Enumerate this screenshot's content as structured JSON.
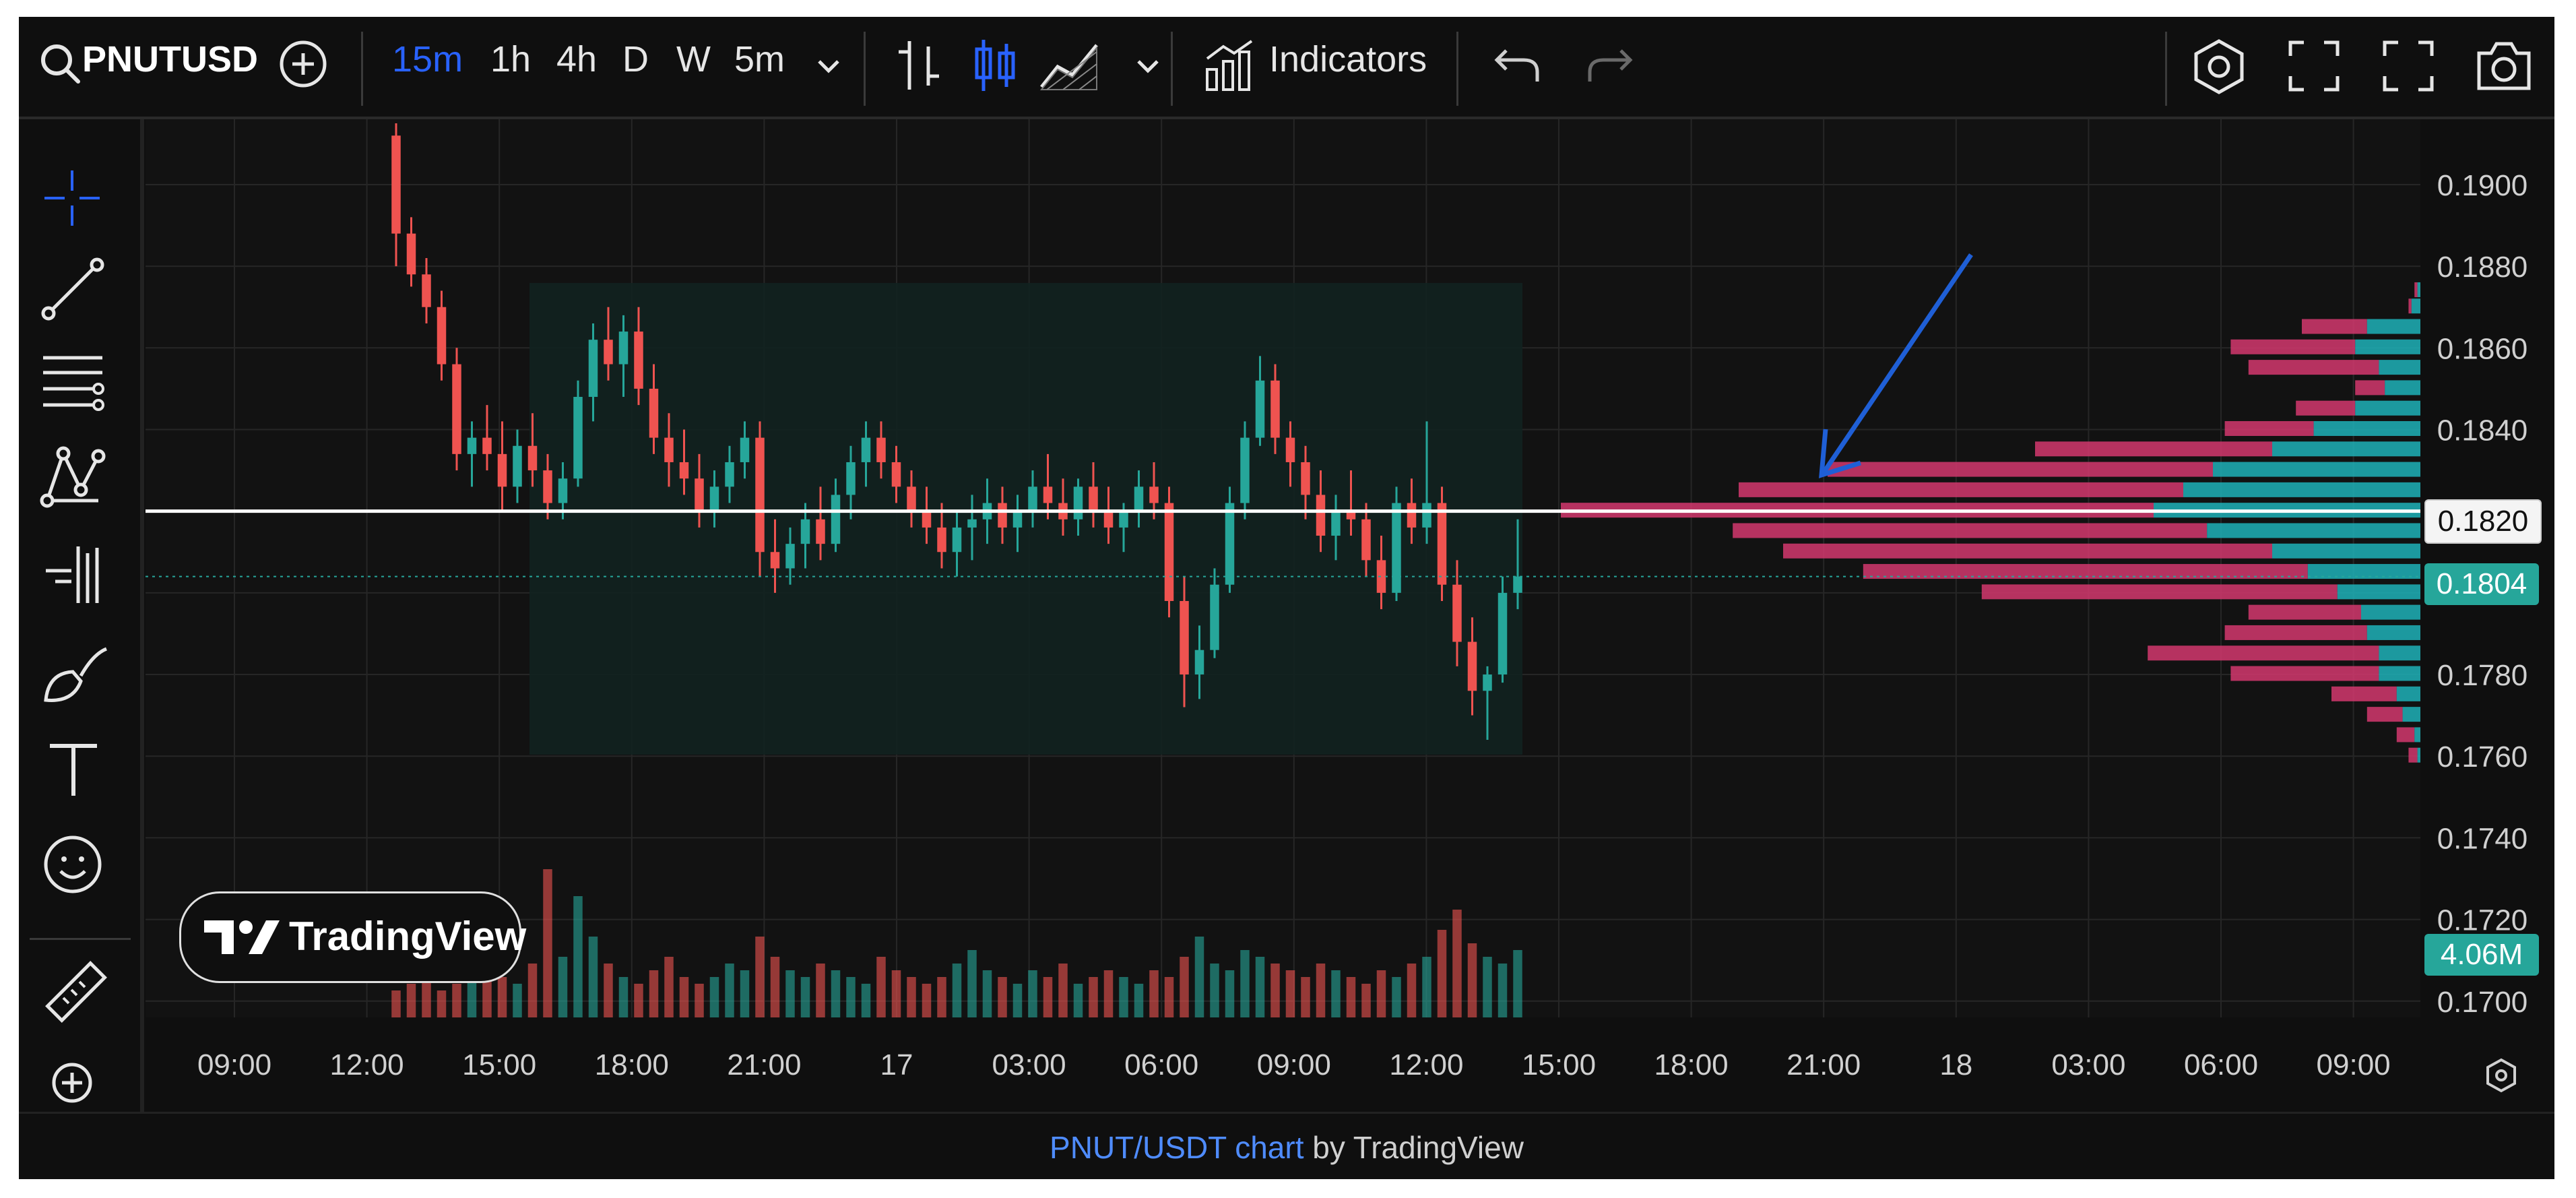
{
  "toolbar": {
    "symbol": "PNUTUSD",
    "intervals": [
      "15m",
      "1h",
      "4h",
      "D",
      "W",
      "5m"
    ],
    "active_interval": "15m",
    "indicators_label": "Indicators",
    "icons": [
      "search-icon",
      "add-symbol-icon",
      "chevron-down-icon",
      "bar-chart-icon",
      "candlestick-icon",
      "area-chart-icon",
      "chevron-down-icon",
      "indicators-icon",
      "undo-icon",
      "redo-icon",
      "settings-icon",
      "fullscreen-icon",
      "fullscreen-icon",
      "camera-icon"
    ]
  },
  "sidebar": {
    "tools": [
      "crosshair-icon",
      "trendline-icon",
      "fib-retracement-icon",
      "pattern-icon",
      "prediction-icon",
      "brush-icon",
      "text-icon",
      "emoji-icon",
      "ruler-icon",
      "zoom-in-icon"
    ]
  },
  "watermark": {
    "label": "TradingView"
  },
  "footer": {
    "link_text": "PNUT/USDT chart",
    "suffix": " by TradingView"
  },
  "chart_data": {
    "type": "candlestick",
    "symbol": "PNUT/USDT",
    "x_ticks": [
      "09:00",
      "12:00",
      "15:00",
      "18:00",
      "21:00",
      "17",
      "03:00",
      "06:00",
      "09:00",
      "12:00",
      "15:00",
      "18:00",
      "21:00",
      "18",
      "03:00",
      "06:00",
      "09:00"
    ],
    "y_ticks": [
      "0.1900",
      "0.1880",
      "0.1860",
      "0.1840",
      "0.1820",
      "0.1800",
      "0.1780",
      "0.1760",
      "0.1740",
      "0.1720",
      "0.1700"
    ],
    "ylim": [
      0.1696,
      0.1916
    ],
    "current_price": "0.1804",
    "horizontal_line_price": "0.1820",
    "volume_label": "4.06M",
    "colors": {
      "up": "#26a69a",
      "down": "#ef5350",
      "line": "#ffffff",
      "arrow": "#1f5fd6",
      "range_box": "#122220",
      "vp_up": "#1fb1b9",
      "vp_down": "#d4386e"
    },
    "ohlc": [
      [
        0.1912,
        0.1915,
        0.188,
        0.1888
      ],
      [
        0.1888,
        0.1892,
        0.1875,
        0.1878
      ],
      [
        0.1878,
        0.1882,
        0.1866,
        0.187
      ],
      [
        0.187,
        0.1874,
        0.1852,
        0.1856
      ],
      [
        0.1856,
        0.186,
        0.183,
        0.1834
      ],
      [
        0.1834,
        0.1842,
        0.1826,
        0.1838
      ],
      [
        0.1838,
        0.1846,
        0.183,
        0.1834
      ],
      [
        0.1834,
        0.1842,
        0.182,
        0.1826
      ],
      [
        0.1826,
        0.184,
        0.1822,
        0.1836
      ],
      [
        0.1836,
        0.1844,
        0.1826,
        0.183
      ],
      [
        0.183,
        0.1834,
        0.1818,
        0.1822
      ],
      [
        0.1822,
        0.1832,
        0.1818,
        0.1828
      ],
      [
        0.1828,
        0.1852,
        0.1826,
        0.1848
      ],
      [
        0.1848,
        0.1866,
        0.1842,
        0.1862
      ],
      [
        0.1862,
        0.187,
        0.1852,
        0.1856
      ],
      [
        0.1856,
        0.1868,
        0.1848,
        0.1864
      ],
      [
        0.1864,
        0.187,
        0.1846,
        0.185
      ],
      [
        0.185,
        0.1856,
        0.1834,
        0.1838
      ],
      [
        0.1838,
        0.1844,
        0.1826,
        0.1832
      ],
      [
        0.1832,
        0.184,
        0.1824,
        0.1828
      ],
      [
        0.1828,
        0.1834,
        0.1816,
        0.182
      ],
      [
        0.182,
        0.183,
        0.1816,
        0.1826
      ],
      [
        0.1826,
        0.1836,
        0.1822,
        0.1832
      ],
      [
        0.1832,
        0.1842,
        0.1828,
        0.1838
      ],
      [
        0.1838,
        0.1842,
        0.1804,
        0.181
      ],
      [
        0.181,
        0.1818,
        0.18,
        0.1806
      ],
      [
        0.1806,
        0.1816,
        0.1802,
        0.1812
      ],
      [
        0.1812,
        0.1822,
        0.1806,
        0.1818
      ],
      [
        0.1818,
        0.1826,
        0.1808,
        0.1812
      ],
      [
        0.1812,
        0.1828,
        0.181,
        0.1824
      ],
      [
        0.1824,
        0.1836,
        0.1818,
        0.1832
      ],
      [
        0.1832,
        0.1842,
        0.1826,
        0.1838
      ],
      [
        0.1838,
        0.1842,
        0.1828,
        0.1832
      ],
      [
        0.1832,
        0.1836,
        0.1822,
        0.1826
      ],
      [
        0.1826,
        0.183,
        0.1816,
        0.182
      ],
      [
        0.182,
        0.1826,
        0.1812,
        0.1816
      ],
      [
        0.1816,
        0.1822,
        0.1806,
        0.181
      ],
      [
        0.181,
        0.182,
        0.1804,
        0.1816
      ],
      [
        0.1816,
        0.1824,
        0.1808,
        0.1818
      ],
      [
        0.1818,
        0.1828,
        0.1812,
        0.1822
      ],
      [
        0.1822,
        0.1826,
        0.1812,
        0.1816
      ],
      [
        0.1816,
        0.1824,
        0.181,
        0.182
      ],
      [
        0.182,
        0.183,
        0.1816,
        0.1826
      ],
      [
        0.1826,
        0.1834,
        0.1818,
        0.1822
      ],
      [
        0.1822,
        0.1828,
        0.1814,
        0.1818
      ],
      [
        0.1818,
        0.1828,
        0.1814,
        0.1826
      ],
      [
        0.1826,
        0.1832,
        0.1816,
        0.182
      ],
      [
        0.182,
        0.1826,
        0.1812,
        0.1816
      ],
      [
        0.1816,
        0.1822,
        0.181,
        0.182
      ],
      [
        0.182,
        0.183,
        0.1816,
        0.1826
      ],
      [
        0.1826,
        0.1832,
        0.1818,
        0.1822
      ],
      [
        0.1822,
        0.1826,
        0.1794,
        0.1798
      ],
      [
        0.1798,
        0.1804,
        0.1772,
        0.178
      ],
      [
        0.178,
        0.1792,
        0.1774,
        0.1786
      ],
      [
        0.1786,
        0.1806,
        0.1784,
        0.1802
      ],
      [
        0.1802,
        0.1826,
        0.18,
        0.1822
      ],
      [
        0.1822,
        0.1842,
        0.1818,
        0.1838
      ],
      [
        0.1838,
        0.1858,
        0.1836,
        0.1852
      ],
      [
        0.1852,
        0.1856,
        0.1834,
        0.1838
      ],
      [
        0.1838,
        0.1842,
        0.1826,
        0.1832
      ],
      [
        0.1832,
        0.1836,
        0.1818,
        0.1824
      ],
      [
        0.1824,
        0.183,
        0.181,
        0.1814
      ],
      [
        0.1814,
        0.1824,
        0.1808,
        0.182
      ],
      [
        0.182,
        0.183,
        0.1814,
        0.1818
      ],
      [
        0.1818,
        0.1822,
        0.1804,
        0.1808
      ],
      [
        0.1808,
        0.1814,
        0.1796,
        0.18
      ],
      [
        0.18,
        0.1826,
        0.1798,
        0.1822
      ],
      [
        0.1822,
        0.1828,
        0.1812,
        0.1816
      ],
      [
        0.1816,
        0.1842,
        0.1812,
        0.1822
      ],
      [
        0.1822,
        0.1826,
        0.1798,
        0.1802
      ],
      [
        0.1802,
        0.1808,
        0.1782,
        0.1788
      ],
      [
        0.1788,
        0.1794,
        0.177,
        0.1776
      ],
      [
        0.1776,
        0.1782,
        0.1764,
        0.178
      ],
      [
        0.178,
        0.1804,
        0.1778,
        0.18
      ],
      [
        0.18,
        0.1818,
        0.1796,
        0.1804
      ]
    ],
    "volume": [
      4,
      5,
      6,
      4,
      5,
      6,
      7,
      6,
      5,
      8,
      22,
      9,
      18,
      12,
      8,
      6,
      5,
      7,
      9,
      6,
      5,
      6,
      8,
      7,
      12,
      9,
      7,
      6,
      8,
      7,
      6,
      5,
      9,
      7,
      6,
      5,
      6,
      8,
      10,
      7,
      6,
      5,
      7,
      6,
      8,
      5,
      6,
      7,
      6,
      5,
      7,
      6,
      9,
      12,
      8,
      7,
      10,
      9,
      8,
      7,
      6,
      8,
      7,
      6,
      5,
      7,
      6,
      8,
      9,
      13,
      16,
      11,
      9,
      8,
      10
    ],
    "volume_profile": [
      {
        "price": 0.1874,
        "up": 1,
        "down": 1
      },
      {
        "price": 0.187,
        "up": 3,
        "down": 1
      },
      {
        "price": 0.1865,
        "up": 18,
        "down": 22
      },
      {
        "price": 0.186,
        "up": 22,
        "down": 42
      },
      {
        "price": 0.1855,
        "up": 14,
        "down": 44
      },
      {
        "price": 0.185,
        "up": 12,
        "down": 10
      },
      {
        "price": 0.1845,
        "up": 22,
        "down": 20
      },
      {
        "price": 0.184,
        "up": 36,
        "down": 30
      },
      {
        "price": 0.1835,
        "up": 50,
        "down": 80
      },
      {
        "price": 0.183,
        "up": 70,
        "down": 130
      },
      {
        "price": 0.1825,
        "up": 80,
        "down": 150
      },
      {
        "price": 0.182,
        "up": 90,
        "down": 200
      },
      {
        "price": 0.1815,
        "up": 72,
        "down": 160
      },
      {
        "price": 0.181,
        "up": 50,
        "down": 165
      },
      {
        "price": 0.1805,
        "up": 38,
        "down": 150
      },
      {
        "price": 0.18,
        "up": 28,
        "down": 120
      },
      {
        "price": 0.1795,
        "up": 20,
        "down": 38
      },
      {
        "price": 0.179,
        "up": 18,
        "down": 48
      },
      {
        "price": 0.1785,
        "up": 14,
        "down": 78
      },
      {
        "price": 0.178,
        "up": 14,
        "down": 50
      },
      {
        "price": 0.1775,
        "up": 8,
        "down": 22
      },
      {
        "price": 0.177,
        "up": 6,
        "down": 12
      },
      {
        "price": 0.1765,
        "up": 2,
        "down": 6
      },
      {
        "price": 0.176,
        "up": 1,
        "down": 3
      }
    ]
  }
}
